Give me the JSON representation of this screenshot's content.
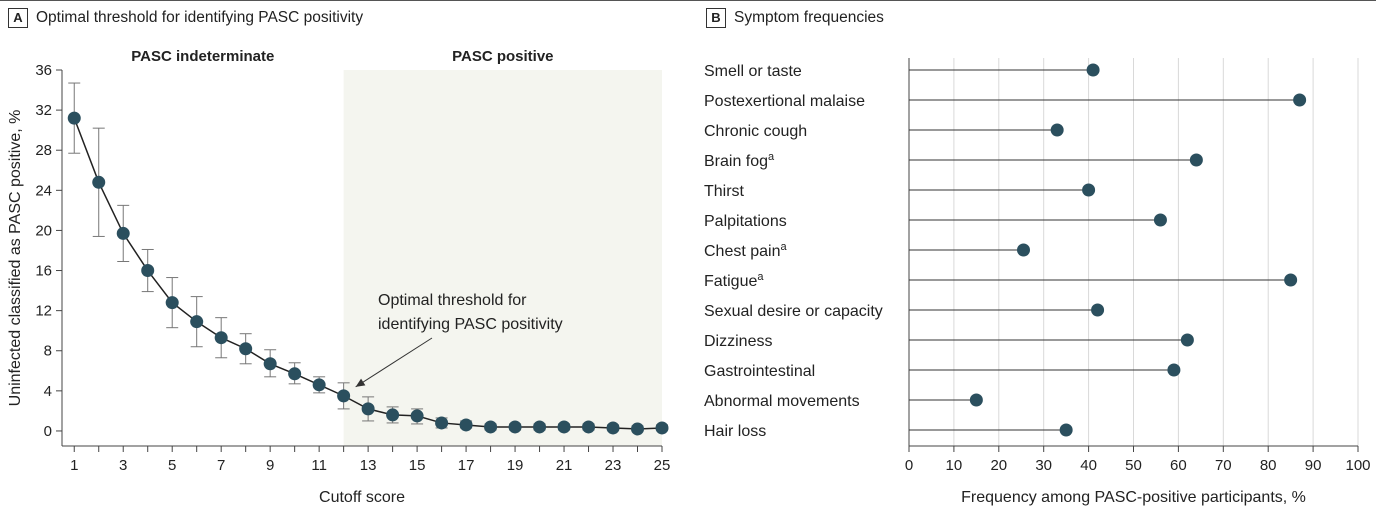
{
  "chart_data": [
    {
      "panel": "A",
      "type": "line",
      "title": "Optimal threshold for identifying PASC positivity",
      "xlabel": "Cutoff score",
      "ylabel": "Uninfected classified as PASC positive, %",
      "xlim": [
        0.5,
        25
      ],
      "ylim": [
        -1.5,
        36
      ],
      "yticks": [
        0,
        4,
        8,
        12,
        16,
        20,
        24,
        28,
        32,
        36
      ],
      "xticks_labeled": [
        1,
        3,
        5,
        7,
        9,
        11,
        13,
        15,
        17,
        19,
        21,
        23,
        25
      ],
      "grid": false,
      "region_labels": {
        "indeterminate": "PASC indeterminate",
        "positive": "PASC positive"
      },
      "shaded_region_start": 12,
      "annotation": {
        "lines": [
          "Optimal threshold for",
          "identifying PASC positivity"
        ],
        "target_x": 12,
        "target_y": 3.5
      },
      "x": [
        1,
        2,
        3,
        4,
        5,
        6,
        7,
        8,
        9,
        10,
        11,
        12,
        13,
        14,
        15,
        16,
        17,
        18,
        19,
        20,
        21,
        22,
        23,
        24,
        25
      ],
      "values": [
        31.2,
        24.8,
        19.7,
        16.0,
        12.8,
        10.9,
        9.3,
        8.2,
        6.7,
        5.7,
        4.6,
        3.5,
        2.2,
        1.6,
        1.5,
        0.8,
        0.6,
        0.4,
        0.4,
        0.4,
        0.4,
        0.4,
        0.3,
        0.2,
        0.3
      ],
      "ci_low": [
        27.7,
        19.4,
        16.9,
        13.9,
        10.3,
        8.4,
        7.3,
        6.7,
        5.4,
        4.7,
        3.8,
        2.2,
        1.0,
        0.8,
        0.7,
        0.3,
        0.3,
        0.1,
        0.1,
        0.1,
        0.1,
        0.1,
        0.1,
        0.0,
        0.1
      ],
      "ci_high": [
        34.7,
        30.2,
        22.5,
        18.1,
        15.3,
        13.4,
        11.3,
        9.7,
        8.1,
        6.8,
        5.4,
        4.8,
        3.4,
        2.4,
        2.2,
        1.3,
        1.0,
        0.7,
        0.7,
        0.7,
        0.7,
        0.7,
        0.6,
        0.5,
        0.6
      ],
      "colors": {
        "marker": "#2b4f5e",
        "shade": "#f4f5ef"
      }
    },
    {
      "panel": "B",
      "type": "bar",
      "subtype": "lollipop-horizontal",
      "title": "Symptom frequencies",
      "xlabel": "Frequency among PASC-positive participants, %",
      "xlim": [
        0,
        100
      ],
      "xticks": [
        0,
        10,
        20,
        30,
        40,
        50,
        60,
        70,
        80,
        90,
        100
      ],
      "grid": true,
      "categories": [
        {
          "label": "Smell or taste",
          "sup": ""
        },
        {
          "label": "Postexertional malaise",
          "sup": ""
        },
        {
          "label": "Chronic cough",
          "sup": ""
        },
        {
          "label": "Brain fog",
          "sup": "a"
        },
        {
          "label": "Thirst",
          "sup": ""
        },
        {
          "label": "Palpitations",
          "sup": ""
        },
        {
          "label": "Chest pain",
          "sup": "a"
        },
        {
          "label": "Fatigue",
          "sup": "a"
        },
        {
          "label": "Sexual desire or capacity",
          "sup": ""
        },
        {
          "label": "Dizziness",
          "sup": ""
        },
        {
          "label": "Gastrointestinal",
          "sup": ""
        },
        {
          "label": "Abnormal movements",
          "sup": ""
        },
        {
          "label": "Hair loss",
          "sup": ""
        }
      ],
      "values": [
        41,
        87,
        33,
        64,
        40,
        56,
        25.5,
        85,
        42,
        62,
        59,
        15,
        35
      ],
      "colors": {
        "marker": "#2b4f5e",
        "grid": "#d9d9d9"
      }
    }
  ]
}
